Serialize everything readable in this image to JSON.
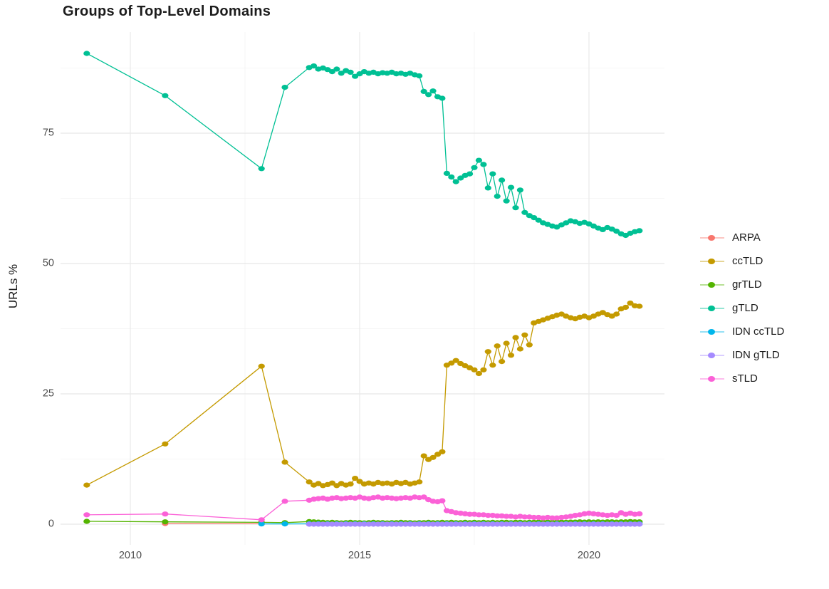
{
  "chart_data": {
    "type": "line",
    "title": "Groups of Top-Level Domains",
    "xlabel": "",
    "ylabel": "URLs %",
    "grid": true,
    "legend_position": "right",
    "x_axis": {
      "range": [
        2008.45,
        2021.65
      ],
      "ticks": [
        {
          "value": 2010,
          "label": "2010"
        },
        {
          "value": 2015,
          "label": "2015"
        },
        {
          "value": 2020,
          "label": "2020"
        }
      ],
      "minor": [
        2012.5,
        2017.5
      ]
    },
    "y_axis": {
      "range": [
        -4,
        94.5
      ],
      "ticks": [
        {
          "value": 0,
          "label": "0"
        },
        {
          "value": 25,
          "label": "25"
        },
        {
          "value": 50,
          "label": "50"
        },
        {
          "value": 75,
          "label": "75"
        }
      ],
      "minor": [
        12.5,
        37.5,
        62.5,
        87.5
      ]
    },
    "series": [
      {
        "name": "ARPA",
        "color": "#F8766D",
        "points": [
          [
            2010.76,
            0.12
          ],
          [
            2012.86,
            0.08
          ]
        ]
      },
      {
        "name": "ccTLD",
        "color": "#C49A00",
        "points": [
          [
            2009.05,
            7.5
          ],
          [
            2010.76,
            15.4
          ],
          [
            2012.86,
            30.3
          ],
          [
            2013.37,
            11.9
          ]
        ],
        "dense": {
          "x0": 2013.9,
          "dx": 0.1,
          "values": [
            8.1,
            7.5,
            7.8,
            7.4,
            7.6,
            7.9,
            7.4,
            7.8,
            7.5,
            7.7,
            8.8,
            8.2,
            7.7,
            7.9,
            7.7,
            8.0,
            7.8,
            7.9,
            7.7,
            8.0,
            7.8,
            8.0,
            7.7,
            7.9,
            8.1,
            13.1,
            12.4,
            12.8,
            13.4,
            13.9,
            30.5,
            30.9,
            31.4,
            30.8,
            30.4,
            30.0,
            29.6,
            28.9,
            29.6,
            33.1,
            30.5,
            34.2,
            31.2,
            34.7,
            32.4,
            35.8,
            33.6,
            36.3,
            34.4,
            38.6,
            38.9,
            39.2,
            39.5,
            39.8,
            40.1,
            40.3,
            39.9,
            39.6,
            39.4,
            39.7,
            39.9,
            39.6,
            39.9,
            40.3,
            40.6,
            40.2,
            39.9,
            40.3,
            41.3,
            41.6,
            42.4,
            41.9,
            41.8
          ]
        }
      },
      {
        "name": "grTLD",
        "color": "#53B400",
        "points": [
          [
            2009.05,
            0.55
          ],
          [
            2010.76,
            0.45
          ],
          [
            2012.86,
            0.35
          ],
          [
            2013.37,
            0.3
          ]
        ],
        "dense": {
          "x0": 2013.9,
          "dx": 0.1,
          "values": [
            0.5,
            0.45,
            0.4,
            0.35,
            0.3,
            0.35,
            0.3,
            0.25,
            0.3,
            0.35,
            0.3,
            0.3,
            0.25,
            0.3,
            0.35,
            0.3,
            0.3,
            0.25,
            0.3,
            0.3,
            0.35,
            0.3,
            0.3,
            0.25,
            0.3,
            0.3,
            0.35,
            0.3,
            0.3,
            0.35,
            0.3,
            0.35,
            0.3,
            0.3,
            0.35,
            0.3,
            0.35,
            0.3,
            0.35,
            0.3,
            0.35,
            0.3,
            0.35,
            0.35,
            0.3,
            0.35,
            0.35,
            0.3,
            0.35,
            0.35,
            0.4,
            0.35,
            0.4,
            0.35,
            0.4,
            0.4,
            0.35,
            0.4,
            0.4,
            0.45,
            0.4,
            0.45,
            0.4,
            0.45,
            0.4,
            0.45,
            0.45,
            0.4,
            0.45,
            0.45,
            0.5,
            0.45,
            0.45
          ]
        }
      },
      {
        "name": "gTLD",
        "color": "#00C094",
        "points": [
          [
            2009.05,
            90.3
          ],
          [
            2010.76,
            82.2
          ],
          [
            2012.86,
            68.2
          ],
          [
            2013.37,
            83.8
          ]
        ],
        "dense": {
          "x0": 2013.9,
          "dx": 0.1,
          "values": [
            87.6,
            87.9,
            87.3,
            87.5,
            87.2,
            86.8,
            87.3,
            86.5,
            87.0,
            86.7,
            85.9,
            86.4,
            86.8,
            86.5,
            86.7,
            86.4,
            86.6,
            86.5,
            86.7,
            86.4,
            86.5,
            86.3,
            86.5,
            86.2,
            86.0,
            83.0,
            82.4,
            83.1,
            82.0,
            81.7,
            67.3,
            66.6,
            65.7,
            66.4,
            66.9,
            67.2,
            68.4,
            69.8,
            69.0,
            64.5,
            67.2,
            62.9,
            66.0,
            62.0,
            64.6,
            60.7,
            64.1,
            59.8,
            59.2,
            58.8,
            58.3,
            57.8,
            57.5,
            57.2,
            57.0,
            57.4,
            57.8,
            58.2,
            58.0,
            57.7,
            57.9,
            57.6,
            57.2,
            56.8,
            56.5,
            56.9,
            56.6,
            56.2,
            55.7,
            55.4,
            55.8,
            56.1,
            56.3
          ]
        }
      },
      {
        "name": "IDN ccTLD",
        "color": "#00B6EB",
        "points": [
          [
            2012.86,
            0.05
          ],
          [
            2013.37,
            0.05
          ]
        ],
        "dense": {
          "x0": 2013.9,
          "dx": 0.2,
          "n": 37,
          "fill": 0.07
        }
      },
      {
        "name": "IDN gTLD",
        "color": "#A58AFF",
        "points": [],
        "dense": {
          "x0": 2013.9,
          "dx": 0.1,
          "n": 73,
          "fill": 0.0
        }
      },
      {
        "name": "sTLD",
        "color": "#FB61D7",
        "points": [
          [
            2009.05,
            1.8
          ],
          [
            2010.76,
            1.95
          ],
          [
            2012.86,
            0.85
          ],
          [
            2013.37,
            4.4
          ]
        ],
        "dense": {
          "x0": 2013.9,
          "dx": 0.1,
          "values": [
            4.6,
            4.8,
            4.9,
            5.0,
            4.8,
            5.0,
            5.1,
            4.9,
            5.0,
            5.1,
            5.0,
            5.2,
            5.0,
            4.9,
            5.1,
            5.2,
            5.0,
            5.1,
            5.0,
            4.9,
            5.0,
            5.1,
            5.0,
            5.2,
            5.1,
            5.2,
            4.7,
            4.4,
            4.3,
            4.5,
            2.6,
            2.4,
            2.2,
            2.1,
            2.0,
            1.9,
            1.9,
            1.8,
            1.8,
            1.7,
            1.7,
            1.6,
            1.6,
            1.5,
            1.5,
            1.4,
            1.5,
            1.4,
            1.4,
            1.3,
            1.3,
            1.2,
            1.3,
            1.2,
            1.2,
            1.3,
            1.4,
            1.5,
            1.7,
            1.8,
            2.0,
            2.1,
            2.0,
            1.9,
            1.8,
            1.7,
            1.8,
            1.7,
            2.2,
            1.9,
            2.1,
            1.9,
            2.0
          ]
        }
      }
    ]
  }
}
